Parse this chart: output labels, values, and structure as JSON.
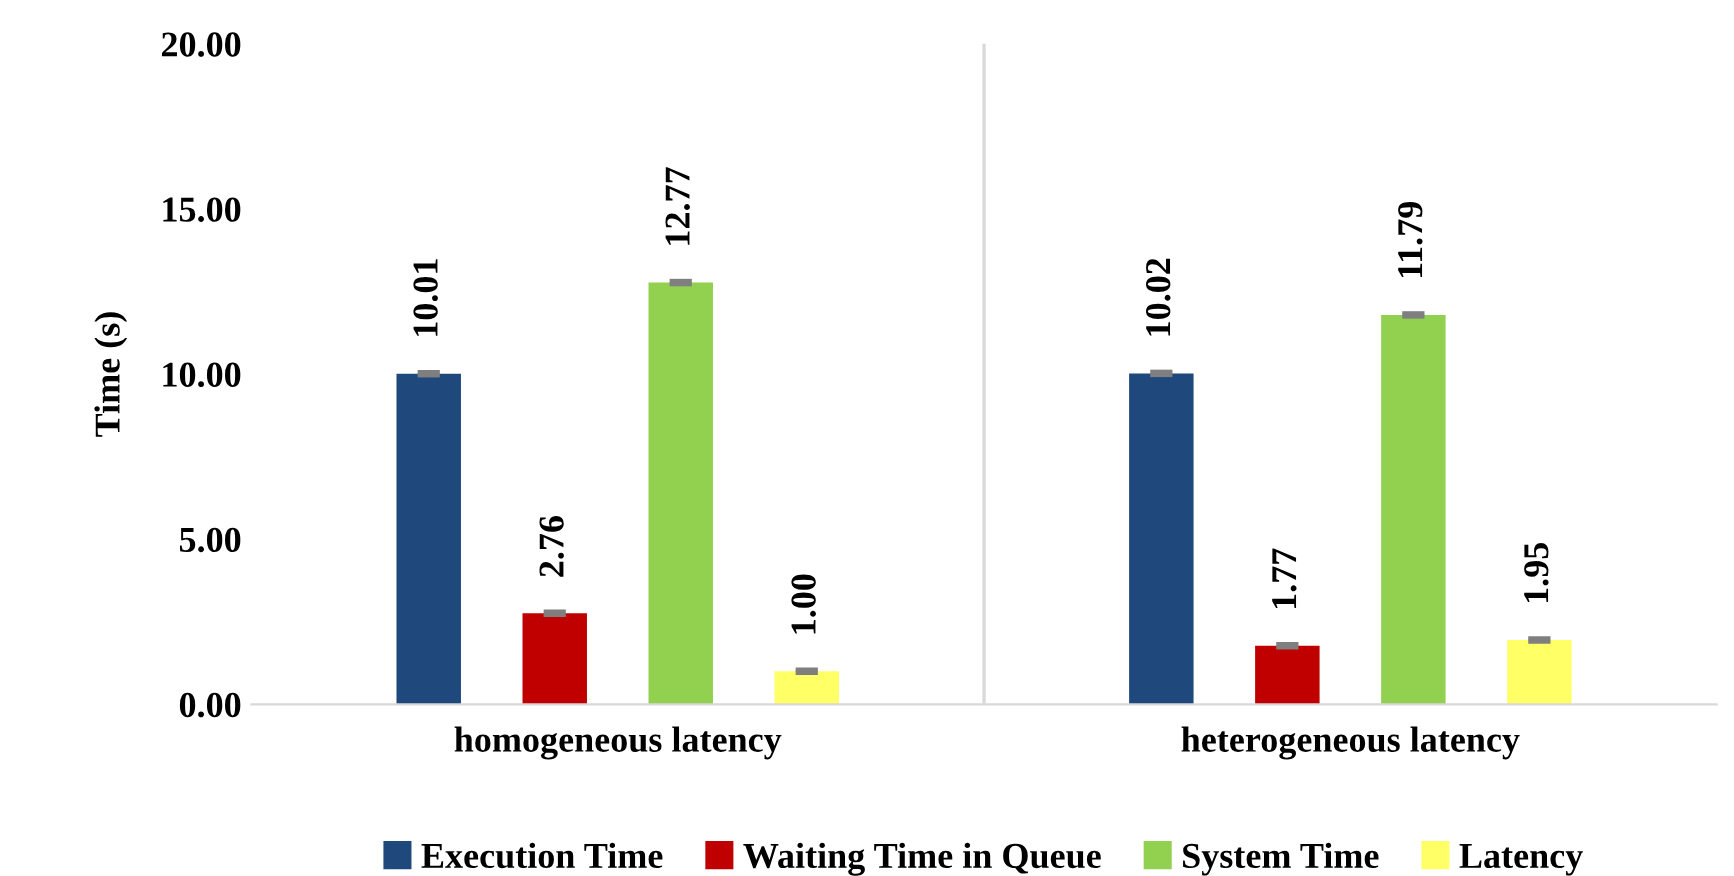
{
  "chart_data": {
    "type": "bar",
    "ylabel": "Time (s)",
    "categories": [
      "homogeneous latency",
      "heterogeneous latency"
    ],
    "series": [
      {
        "name": "Execution Time",
        "color": "#1f497d",
        "values": [
          10.01,
          10.02
        ],
        "value_labels": [
          "10.01",
          "10.02"
        ],
        "errors": [
          0.05,
          0.05
        ]
      },
      {
        "name": "Waiting Time in Queue",
        "color": "#c00000",
        "values": [
          2.76,
          1.77
        ],
        "value_labels": [
          "2.76",
          "1.77"
        ],
        "errors": [
          0.05,
          0.05
        ]
      },
      {
        "name": "System Time",
        "color": "#92d050",
        "values": [
          12.77,
          11.79
        ],
        "value_labels": [
          "12.77",
          "11.79"
        ],
        "errors": [
          0.05,
          0.05
        ]
      },
      {
        "name": "Latency",
        "color": "#ffff66",
        "values": [
          1.0,
          1.95
        ],
        "value_labels": [
          "1.00",
          "1.95"
        ],
        "errors": [
          0.05,
          0.05
        ]
      }
    ],
    "ylim": [
      0,
      20
    ],
    "yticks": [
      {
        "value": 0,
        "label": "0.00"
      },
      {
        "value": 5,
        "label": "5.00"
      },
      {
        "value": 10,
        "label": "10.00"
      },
      {
        "value": 15,
        "label": "15.00"
      },
      {
        "value": 20,
        "label": "20.00"
      }
    ],
    "grid": "x",
    "legend": "bottom"
  }
}
